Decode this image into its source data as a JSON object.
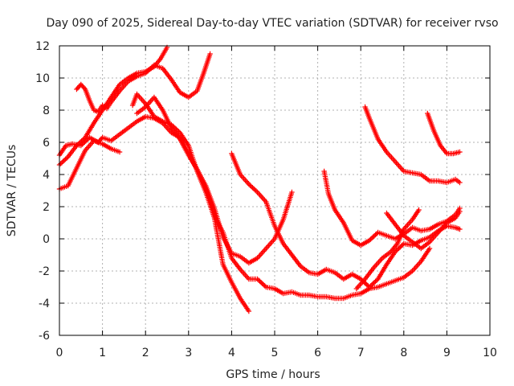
{
  "chart_data": {
    "type": "scatter",
    "title": "Day 090 of 2025, Sidereal Day-to-day VTEC variation (SDTVAR) for receiver rvso",
    "xlabel": "GPS time / hours",
    "ylabel": "SDTVAR / TECUs",
    "xlim": [
      0,
      10
    ],
    "ylim": [
      -6,
      12
    ],
    "xticks": [
      0,
      1,
      2,
      3,
      4,
      5,
      6,
      7,
      8,
      9,
      10
    ],
    "yticks": [
      -6,
      -4,
      -2,
      0,
      2,
      4,
      6,
      8,
      10,
      12
    ],
    "grid": true,
    "marker": "+",
    "colors": {
      "series": "#ff0000",
      "grid": "#b0b0b0",
      "axis": "#000000"
    },
    "series": [
      {
        "points": [
          [
            0.0,
            4.6
          ],
          [
            0.2,
            5.1
          ],
          [
            0.4,
            5.8
          ],
          [
            0.6,
            6.3
          ],
          [
            0.8,
            7.2
          ],
          [
            1.0,
            8.0
          ],
          [
            1.2,
            8.8
          ],
          [
            1.4,
            9.6
          ],
          [
            1.6,
            10.0
          ],
          [
            1.8,
            10.3
          ],
          [
            2.0,
            10.4
          ],
          [
            2.2,
            10.7
          ],
          [
            2.35,
            11.2
          ],
          [
            2.5,
            11.9
          ]
        ]
      },
      {
        "points": [
          [
            0.4,
            9.3
          ],
          [
            0.5,
            9.6
          ],
          [
            0.6,
            9.3
          ],
          [
            0.7,
            8.6
          ],
          [
            0.8,
            8.0
          ],
          [
            0.9,
            7.9
          ],
          [
            1.0,
            8.3
          ],
          [
            1.1,
            8.1
          ],
          [
            1.2,
            8.5
          ],
          [
            1.4,
            9.2
          ],
          [
            1.6,
            9.8
          ],
          [
            1.8,
            10.1
          ],
          [
            2.0,
            10.3
          ],
          [
            2.2,
            10.8
          ],
          [
            2.4,
            10.6
          ],
          [
            2.6,
            9.9
          ],
          [
            2.8,
            9.1
          ],
          [
            3.0,
            8.8
          ],
          [
            3.2,
            9.2
          ],
          [
            3.35,
            10.3
          ],
          [
            3.5,
            11.5
          ]
        ]
      },
      {
        "points": [
          [
            0.0,
            5.2
          ],
          [
            0.15,
            5.8
          ],
          [
            0.3,
            5.9
          ],
          [
            0.5,
            5.8
          ],
          [
            0.7,
            6.3
          ],
          [
            0.9,
            6.0
          ],
          [
            1.0,
            6.3
          ],
          [
            1.2,
            6.1
          ],
          [
            1.4,
            6.5
          ],
          [
            1.6,
            6.9
          ],
          [
            1.8,
            7.3
          ],
          [
            2.0,
            7.6
          ],
          [
            2.2,
            7.5
          ],
          [
            2.4,
            7.2
          ],
          [
            2.6,
            6.6
          ],
          [
            2.8,
            6.3
          ],
          [
            3.0,
            5.3
          ],
          [
            3.2,
            4.3
          ],
          [
            3.4,
            3.3
          ],
          [
            3.6,
            1.9
          ],
          [
            3.8,
            0.1
          ],
          [
            4.0,
            -0.9
          ],
          [
            4.2,
            -1.1
          ],
          [
            4.4,
            -1.5
          ],
          [
            4.6,
            -1.2
          ],
          [
            4.8,
            -0.6
          ],
          [
            5.0,
            0.0
          ],
          [
            5.2,
            1.2
          ],
          [
            5.4,
            2.9
          ]
        ]
      },
      {
        "points": [
          [
            0.0,
            3.1
          ],
          [
            0.2,
            3.3
          ],
          [
            0.4,
            4.4
          ],
          [
            0.6,
            5.5
          ],
          [
            0.8,
            6.1
          ],
          [
            1.0,
            5.9
          ],
          [
            1.2,
            5.6
          ],
          [
            1.4,
            5.4
          ]
        ]
      },
      {
        "points": [
          [
            1.7,
            8.3
          ],
          [
            1.8,
            9.0
          ],
          [
            2.0,
            8.4
          ],
          [
            2.2,
            7.6
          ],
          [
            2.4,
            7.3
          ],
          [
            2.6,
            7.1
          ],
          [
            2.8,
            6.6
          ],
          [
            3.0,
            5.8
          ],
          [
            3.2,
            4.2
          ],
          [
            3.4,
            2.9
          ],
          [
            3.6,
            1.3
          ],
          [
            3.8,
            -1.6
          ],
          [
            4.0,
            -2.7
          ],
          [
            4.2,
            -3.7
          ],
          [
            4.4,
            -4.5
          ]
        ]
      },
      {
        "points": [
          [
            1.8,
            7.8
          ],
          [
            2.0,
            8.2
          ],
          [
            2.2,
            8.8
          ],
          [
            2.4,
            8.0
          ],
          [
            2.6,
            6.9
          ],
          [
            2.8,
            6.2
          ],
          [
            3.0,
            5.2
          ],
          [
            3.2,
            4.3
          ],
          [
            3.4,
            3.2
          ],
          [
            3.6,
            1.4
          ],
          [
            3.8,
            0.4
          ],
          [
            4.0,
            -1.2
          ],
          [
            4.2,
            -1.9
          ],
          [
            4.4,
            -2.5
          ],
          [
            4.6,
            -2.5
          ],
          [
            4.8,
            -3.0
          ],
          [
            5.0,
            -3.1
          ],
          [
            5.2,
            -3.4
          ],
          [
            5.4,
            -3.3
          ],
          [
            5.6,
            -3.5
          ],
          [
            5.8,
            -3.5
          ],
          [
            6.0,
            -3.6
          ],
          [
            6.2,
            -3.6
          ],
          [
            6.4,
            -3.7
          ],
          [
            6.6,
            -3.7
          ],
          [
            6.8,
            -3.5
          ],
          [
            7.0,
            -3.4
          ],
          [
            7.2,
            -3.1
          ],
          [
            7.4,
            -3.0
          ],
          [
            7.6,
            -2.8
          ],
          [
            7.8,
            -2.6
          ],
          [
            8.0,
            -2.4
          ],
          [
            8.2,
            -2.0
          ],
          [
            8.4,
            -1.4
          ],
          [
            8.6,
            -0.6
          ]
        ]
      },
      {
        "points": [
          [
            4.0,
            5.3
          ],
          [
            4.2,
            4.0
          ],
          [
            4.4,
            3.4
          ],
          [
            4.6,
            2.9
          ],
          [
            4.8,
            2.3
          ],
          [
            5.0,
            0.8
          ],
          [
            5.2,
            -0.3
          ],
          [
            5.4,
            -1.0
          ],
          [
            5.6,
            -1.7
          ],
          [
            5.8,
            -2.1
          ],
          [
            6.0,
            -2.2
          ],
          [
            6.2,
            -1.9
          ],
          [
            6.4,
            -2.1
          ],
          [
            6.6,
            -2.5
          ],
          [
            6.8,
            -2.2
          ],
          [
            7.0,
            -2.5
          ],
          [
            7.2,
            -3.0
          ],
          [
            7.4,
            -2.5
          ],
          [
            7.6,
            -1.6
          ],
          [
            7.8,
            -0.8
          ],
          [
            8.0,
            -0.3
          ],
          [
            8.2,
            -0.4
          ],
          [
            8.4,
            -0.1
          ],
          [
            8.6,
            0.1
          ],
          [
            8.8,
            0.5
          ],
          [
            9.0,
            0.8
          ],
          [
            9.2,
            0.7
          ],
          [
            9.3,
            0.6
          ]
        ]
      },
      {
        "points": [
          [
            6.15,
            4.2
          ],
          [
            6.25,
            2.8
          ],
          [
            6.4,
            1.8
          ],
          [
            6.6,
            1.0
          ],
          [
            6.8,
            -0.1
          ],
          [
            7.0,
            -0.4
          ],
          [
            7.2,
            -0.1
          ],
          [
            7.4,
            0.4
          ],
          [
            7.6,
            0.2
          ],
          [
            7.8,
            0.0
          ],
          [
            8.0,
            0.3
          ],
          [
            8.2,
            0.7
          ],
          [
            8.4,
            0.5
          ],
          [
            8.6,
            0.6
          ],
          [
            8.8,
            0.9
          ],
          [
            9.0,
            1.1
          ],
          [
            9.2,
            1.5
          ],
          [
            9.3,
            1.9
          ]
        ]
      },
      {
        "points": [
          [
            7.1,
            8.2
          ],
          [
            7.2,
            7.5
          ],
          [
            7.4,
            6.2
          ],
          [
            7.6,
            5.4
          ],
          [
            7.8,
            4.8
          ],
          [
            8.0,
            4.2
          ],
          [
            8.2,
            4.1
          ],
          [
            8.4,
            4.0
          ],
          [
            8.6,
            3.6
          ],
          [
            8.8,
            3.6
          ],
          [
            9.0,
            3.5
          ],
          [
            9.2,
            3.7
          ],
          [
            9.3,
            3.5
          ]
        ]
      },
      {
        "points": [
          [
            8.55,
            7.8
          ],
          [
            8.7,
            6.7
          ],
          [
            8.85,
            5.8
          ],
          [
            9.0,
            5.3
          ],
          [
            9.15,
            5.3
          ],
          [
            9.3,
            5.4
          ]
        ]
      },
      {
        "points": [
          [
            7.6,
            1.6
          ],
          [
            7.8,
            0.9
          ],
          [
            8.0,
            0.2
          ],
          [
            8.2,
            -0.2
          ],
          [
            8.4,
            -0.6
          ],
          [
            8.6,
            -0.2
          ],
          [
            8.8,
            0.4
          ],
          [
            9.0,
            1.0
          ],
          [
            9.2,
            1.3
          ],
          [
            9.3,
            1.7
          ]
        ]
      },
      {
        "points": [
          [
            6.9,
            -3.1
          ],
          [
            7.1,
            -2.5
          ],
          [
            7.3,
            -1.8
          ],
          [
            7.5,
            -1.2
          ],
          [
            7.7,
            -0.8
          ],
          [
            7.85,
            -0.3
          ],
          [
            8.0,
            0.6
          ],
          [
            8.2,
            1.2
          ],
          [
            8.35,
            1.8
          ]
        ]
      }
    ]
  }
}
